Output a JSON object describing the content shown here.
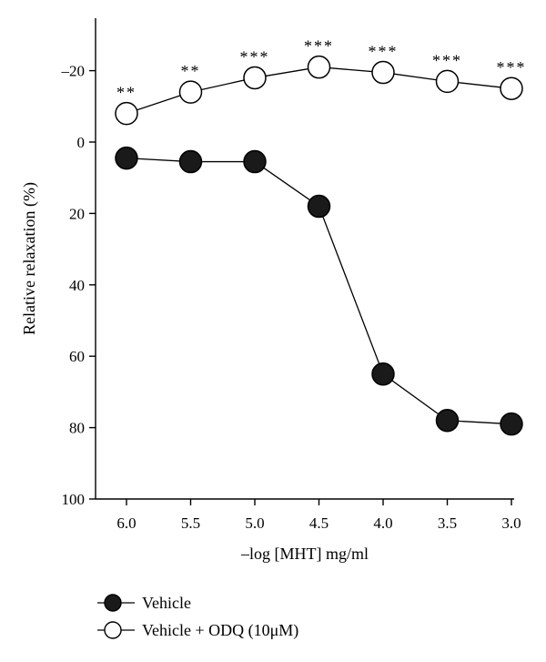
{
  "chart_data": {
    "type": "line",
    "xlabel": "–log [MHT] mg/ml",
    "ylabel": "Relative relaxation (%)",
    "x": [
      6.0,
      5.5,
      5.0,
      4.5,
      4.0,
      3.5,
      3.0
    ],
    "x_tick_labels": [
      "6.0",
      "5.5",
      "5.0",
      "4.5",
      "4.0",
      "3.5",
      "3.0"
    ],
    "xlim": [
      6.0,
      3.0
    ],
    "ylim": [
      -32,
      100
    ],
    "y_inverted": true,
    "y_ticks": [
      -20,
      0,
      20,
      40,
      60,
      80,
      100
    ],
    "y_tick_labels": [
      "–20",
      "0",
      "20",
      "40",
      "60",
      "80",
      "100"
    ],
    "grid": false,
    "legend_position": "bottom-left",
    "series": [
      {
        "name": "Vehicle",
        "marker": "filled-circle",
        "color": "#1a1a1a",
        "values": [
          4.5,
          5.5,
          5.5,
          18,
          65,
          78,
          79
        ]
      },
      {
        "name": "Vehicle + ODQ (10μM)",
        "marker": "open-circle",
        "color": "#ffffff",
        "values": [
          -8,
          -14,
          -18,
          -21,
          -19.5,
          -17,
          -15
        ]
      }
    ],
    "annotations": [
      {
        "x": 6.0,
        "text": "**"
      },
      {
        "x": 5.5,
        "text": "**"
      },
      {
        "x": 5.0,
        "text": "***"
      },
      {
        "x": 4.5,
        "text": "***"
      },
      {
        "x": 4.0,
        "text": "***"
      },
      {
        "x": 3.5,
        "text": "***"
      },
      {
        "x": 3.0,
        "text": "***"
      }
    ]
  }
}
